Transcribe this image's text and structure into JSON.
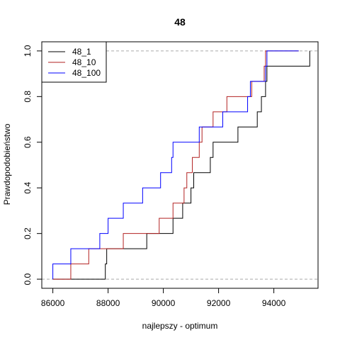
{
  "chart_data": {
    "type": "line",
    "subtype": "empirical-cdf-step",
    "title": "48",
    "xlabel": "najlepszy - optimum",
    "ylabel": "Prawdopodobieństwo",
    "xlim": [
      85600,
      95600
    ],
    "ylim": [
      -0.04,
      1.04
    ],
    "x_ticks": [
      86000,
      88000,
      90000,
      92000,
      94000
    ],
    "x_tick_labels": [
      "86000",
      "88000",
      "90000",
      "92000",
      "94000"
    ],
    "y_ticks": [
      0.0,
      0.2,
      0.4,
      0.6,
      0.8,
      1.0
    ],
    "y_tick_labels": [
      "0.0",
      "0.2",
      "0.4",
      "0.6",
      "0.8",
      "1.0"
    ],
    "reference_lines": [
      0,
      1
    ],
    "reference_line_color": "#aaaaaa",
    "legend_position": "top-left",
    "series": [
      {
        "name": "48_1",
        "color": "#000000",
        "x_start": 86000,
        "x_end": 95300,
        "steps": [
          [
            87900,
            0.0667
          ],
          [
            87950,
            0.1333
          ],
          [
            89400,
            0.2
          ],
          [
            90350,
            0.2667
          ],
          [
            90700,
            0.3333
          ],
          [
            91000,
            0.4
          ],
          [
            91100,
            0.4667
          ],
          [
            91700,
            0.5333
          ],
          [
            91800,
            0.6
          ],
          [
            92700,
            0.6667
          ],
          [
            93400,
            0.7333
          ],
          [
            93550,
            0.8
          ],
          [
            93700,
            0.8667
          ],
          [
            93750,
            0.9333
          ],
          [
            95300,
            1.0
          ]
        ]
      },
      {
        "name": "48_10",
        "color": "#b22222",
        "x_start": 86000,
        "x_end": 94900,
        "steps": [
          [
            86650,
            0.0667
          ],
          [
            87300,
            0.1333
          ],
          [
            88550,
            0.2
          ],
          [
            89850,
            0.2667
          ],
          [
            90350,
            0.3333
          ],
          [
            90750,
            0.4
          ],
          [
            90850,
            0.4667
          ],
          [
            91050,
            0.5333
          ],
          [
            91300,
            0.6
          ],
          [
            91400,
            0.6667
          ],
          [
            91800,
            0.7333
          ],
          [
            92300,
            0.8
          ],
          [
            93200,
            0.8667
          ],
          [
            93650,
            0.9333
          ],
          [
            93700,
            1.0
          ]
        ]
      },
      {
        "name": "48_100",
        "color": "#0000ff",
        "x_start": 86000,
        "x_end": 94900,
        "steps": [
          [
            86000,
            0.0667
          ],
          [
            86650,
            0.1333
          ],
          [
            87700,
            0.2
          ],
          [
            88000,
            0.2667
          ],
          [
            88550,
            0.3333
          ],
          [
            89250,
            0.4
          ],
          [
            89900,
            0.4667
          ],
          [
            90300,
            0.5333
          ],
          [
            90350,
            0.6
          ],
          [
            91300,
            0.6667
          ],
          [
            92150,
            0.7333
          ],
          [
            93050,
            0.8
          ],
          [
            93150,
            0.8667
          ],
          [
            93700,
            0.9333
          ],
          [
            93750,
            1.0
          ]
        ]
      }
    ]
  }
}
